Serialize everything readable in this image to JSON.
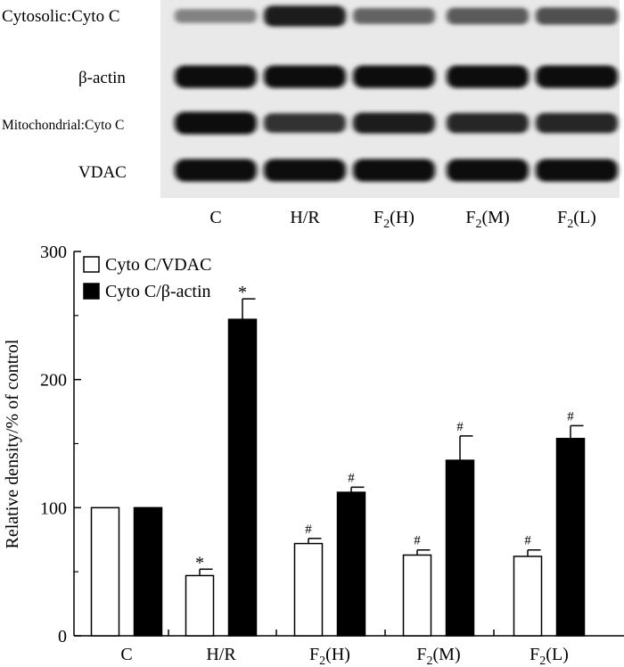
{
  "blot": {
    "rows": [
      {
        "label": "Cytosolic:Cyto C",
        "intensity": [
          0.35,
          0.85,
          0.5,
          0.55,
          0.6
        ]
      },
      {
        "label": "β-actin",
        "intensity": [
          0.95,
          0.95,
          0.95,
          0.95,
          0.95
        ]
      },
      {
        "label": "Mitochondrial:Cyto C",
        "intensity": [
          0.95,
          0.75,
          0.85,
          0.8,
          0.8
        ]
      },
      {
        "label": "VDAC",
        "intensity": [
          0.95,
          0.95,
          0.95,
          0.95,
          0.95
        ]
      }
    ],
    "lane_labels": [
      {
        "base": "C",
        "sub": ""
      },
      {
        "base": "H/R",
        "sub": ""
      },
      {
        "base": "F",
        "sub": "2",
        "suffix": "(H)"
      },
      {
        "base": "F",
        "sub": "2",
        "suffix": "(M)"
      },
      {
        "base": "F",
        "sub": "2",
        "suffix": "(L)"
      }
    ]
  },
  "chart_data": {
    "type": "bar",
    "title": "",
    "xlabel": "",
    "ylabel": "Relative density/% of control",
    "ylim": [
      0,
      300
    ],
    "yticks": [
      "0",
      "100",
      "200",
      "300"
    ],
    "categories": [
      {
        "base": "C",
        "sub": "",
        "suffix": ""
      },
      {
        "base": "H/R",
        "sub": "",
        "suffix": ""
      },
      {
        "base": "F",
        "sub": "2",
        "suffix": "(H)"
      },
      {
        "base": "F",
        "sub": "2",
        "suffix": "(M)"
      },
      {
        "base": "F",
        "sub": "2",
        "suffix": "(L)"
      }
    ],
    "legend_position": "top-left",
    "series": [
      {
        "name": "Cyto C/VDAC",
        "fill": "#ffffff",
        "values": [
          100,
          47,
          72,
          63,
          62
        ],
        "errors": [
          0,
          5,
          4,
          4,
          5
        ],
        "annotations": [
          "",
          "*",
          "#",
          "#",
          "#"
        ]
      },
      {
        "name": "Cyto C/β-actin",
        "fill": "#000000",
        "values": [
          100,
          247,
          112,
          137,
          154
        ],
        "errors": [
          0,
          16,
          4,
          19,
          10
        ],
        "annotations": [
          "",
          "*",
          "#",
          "#",
          "#"
        ]
      }
    ]
  }
}
